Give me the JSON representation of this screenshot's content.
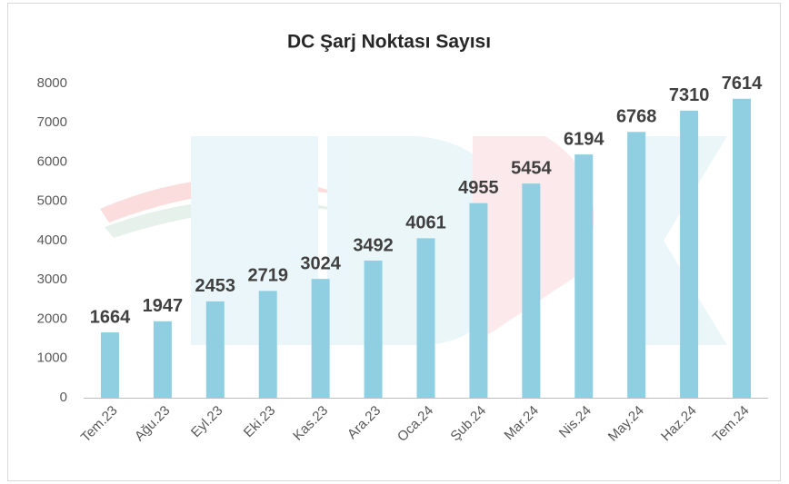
{
  "chart_data": {
    "type": "bar",
    "title": "DC Şarj Noktası Sayısı",
    "categories": [
      "Tem.23",
      "Ağu.23",
      "Eyl.23",
      "Eki.23",
      "Kas.23",
      "Ara.23",
      "Oca.24",
      "Şub.24",
      "Mar.24",
      "Nis.24",
      "May.24",
      "Haz.24",
      "Tem.24"
    ],
    "values": [
      1664,
      1947,
      2453,
      2719,
      3024,
      3492,
      4061,
      4955,
      5454,
      6194,
      6768,
      7310,
      7614
    ],
    "color": "#8fcfe1",
    "ylim": [
      0,
      8000
    ],
    "yticks": [
      0,
      1000,
      2000,
      3000,
      4000,
      5000,
      6000,
      7000,
      8000
    ],
    "grid": false
  }
}
